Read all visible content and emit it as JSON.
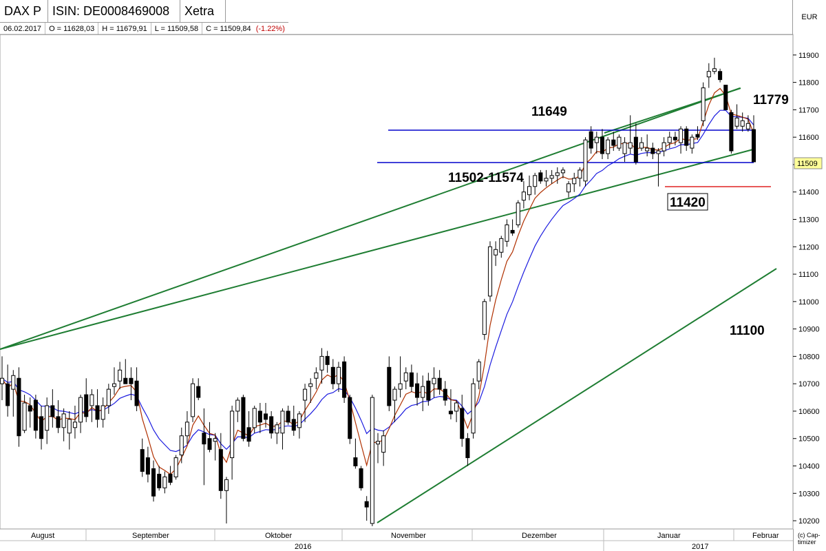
{
  "header": {
    "name": "DAX P",
    "isin": "ISIN: DE0008469008",
    "exchange": "Xetra",
    "currency": "EUR"
  },
  "ohlc": {
    "date": "06.02.2017",
    "open": "O = 11628,03",
    "high": "H = 11679,91",
    "low": "L = 11509,58",
    "close": "C = 11509,84",
    "change": "(-1.22%)"
  },
  "credit": "(c) Cap-timizer",
  "colors": {
    "up_candle": "#ffffff",
    "down_candle": "#000000",
    "ma_fast": "#b03000",
    "ma_slow": "#1a1adf",
    "trendline": "#1e7d32",
    "horizontal_level": "#0000cc",
    "support_line": "#e02020"
  },
  "chart_data": {
    "type": "candlestick",
    "y_ticks": [
      "11900",
      "11800",
      "11700",
      "11600",
      "11500",
      "11400",
      "11300",
      "11200",
      "11100",
      "11000",
      "10900",
      "10800",
      "10700",
      "10600",
      "10500",
      "10400",
      "10300",
      "10200"
    ],
    "ylim": [
      10175,
      11970
    ],
    "price_label": "11509",
    "months": [
      "August",
      "September",
      "Oktober",
      "November",
      "Dezember",
      "Januar",
      "Februar"
    ],
    "years": [
      "2016",
      "2017"
    ],
    "annotations": [
      "11649",
      "11779",
      "11502-11574",
      "11420",
      "11100"
    ],
    "candles": [
      {
        "o": 10700,
        "h": 10800,
        "l": 10640,
        "c": 10720
      },
      {
        "o": 10700,
        "h": 10770,
        "l": 10580,
        "c": 10620
      },
      {
        "o": 10680,
        "h": 10750,
        "l": 10580,
        "c": 10730
      },
      {
        "o": 10720,
        "h": 10760,
        "l": 10470,
        "c": 10510
      },
      {
        "o": 10530,
        "h": 10660,
        "l": 10520,
        "c": 10630
      },
      {
        "o": 10620,
        "h": 10650,
        "l": 10540,
        "c": 10600
      },
      {
        "o": 10640,
        "h": 10660,
        "l": 10500,
        "c": 10530
      },
      {
        "o": 10580,
        "h": 10620,
        "l": 10460,
        "c": 10500
      },
      {
        "o": 10530,
        "h": 10650,
        "l": 10480,
        "c": 10620
      },
      {
        "o": 10620,
        "h": 10680,
        "l": 10540,
        "c": 10580
      },
      {
        "o": 10580,
        "h": 10640,
        "l": 10520,
        "c": 10540
      },
      {
        "o": 10540,
        "h": 10610,
        "l": 10490,
        "c": 10590
      },
      {
        "o": 10520,
        "h": 10600,
        "l": 10460,
        "c": 10570
      },
      {
        "o": 10540,
        "h": 10620,
        "l": 10500,
        "c": 10560
      },
      {
        "o": 10560,
        "h": 10660,
        "l": 10520,
        "c": 10650
      },
      {
        "o": 10660,
        "h": 10720,
        "l": 10560,
        "c": 10580
      },
      {
        "o": 10620,
        "h": 10680,
        "l": 10560,
        "c": 10660
      },
      {
        "o": 10620,
        "h": 10680,
        "l": 10540,
        "c": 10570
      },
      {
        "o": 10570,
        "h": 10650,
        "l": 10540,
        "c": 10620
      },
      {
        "o": 10620,
        "h": 10700,
        "l": 10590,
        "c": 10680
      },
      {
        "o": 10690,
        "h": 10760,
        "l": 10660,
        "c": 10700
      },
      {
        "o": 10710,
        "h": 10780,
        "l": 10680,
        "c": 10750
      },
      {
        "o": 10720,
        "h": 10790,
        "l": 10700,
        "c": 10700
      },
      {
        "o": 10720,
        "h": 10760,
        "l": 10640,
        "c": 10700
      },
      {
        "o": 10710,
        "h": 10760,
        "l": 10600,
        "c": 10620
      },
      {
        "o": 10460,
        "h": 10500,
        "l": 10360,
        "c": 10380
      },
      {
        "o": 10430,
        "h": 10470,
        "l": 10340,
        "c": 10370
      },
      {
        "o": 10390,
        "h": 10420,
        "l": 10270,
        "c": 10290
      },
      {
        "o": 10370,
        "h": 10400,
        "l": 10310,
        "c": 10320
      },
      {
        "o": 10320,
        "h": 10380,
        "l": 10300,
        "c": 10360
      },
      {
        "o": 10370,
        "h": 10400,
        "l": 10330,
        "c": 10340
      },
      {
        "o": 10360,
        "h": 10440,
        "l": 10350,
        "c": 10430
      },
      {
        "o": 10440,
        "h": 10540,
        "l": 10410,
        "c": 10510
      },
      {
        "o": 10510,
        "h": 10600,
        "l": 10480,
        "c": 10560
      },
      {
        "o": 10580,
        "h": 10720,
        "l": 10560,
        "c": 10700
      },
      {
        "o": 10690,
        "h": 10720,
        "l": 10640,
        "c": 10650
      },
      {
        "o": 10520,
        "h": 10610,
        "l": 10330,
        "c": 10480
      },
      {
        "o": 10500,
        "h": 10560,
        "l": 10450,
        "c": 10460
      },
      {
        "o": 10490,
        "h": 10520,
        "l": 10420,
        "c": 10500
      },
      {
        "o": 10460,
        "h": 10520,
        "l": 10280,
        "c": 10310
      },
      {
        "o": 10310,
        "h": 10360,
        "l": 10190,
        "c": 10350
      },
      {
        "o": 10430,
        "h": 10620,
        "l": 10350,
        "c": 10600
      },
      {
        "o": 10600,
        "h": 10650,
        "l": 10560,
        "c": 10640
      },
      {
        "o": 10650,
        "h": 10660,
        "l": 10490,
        "c": 10500
      },
      {
        "o": 10540,
        "h": 10600,
        "l": 10470,
        "c": 10490
      },
      {
        "o": 10540,
        "h": 10620,
        "l": 10520,
        "c": 10610
      },
      {
        "o": 10600,
        "h": 10630,
        "l": 10520,
        "c": 10560
      },
      {
        "o": 10590,
        "h": 10630,
        "l": 10540,
        "c": 10570
      },
      {
        "o": 10580,
        "h": 10600,
        "l": 10500,
        "c": 10520
      },
      {
        "o": 10520,
        "h": 10560,
        "l": 10480,
        "c": 10550
      },
      {
        "o": 10520,
        "h": 10610,
        "l": 10460,
        "c": 10600
      },
      {
        "o": 10600,
        "h": 10620,
        "l": 10550,
        "c": 10560
      },
      {
        "o": 10570,
        "h": 10620,
        "l": 10510,
        "c": 10530
      },
      {
        "o": 10540,
        "h": 10600,
        "l": 10500,
        "c": 10590
      },
      {
        "o": 10640,
        "h": 10700,
        "l": 10560,
        "c": 10680
      },
      {
        "o": 10690,
        "h": 10720,
        "l": 10630,
        "c": 10700
      },
      {
        "o": 10720,
        "h": 10760,
        "l": 10680,
        "c": 10740
      },
      {
        "o": 10750,
        "h": 10830,
        "l": 10700,
        "c": 10800
      },
      {
        "o": 10800,
        "h": 10820,
        "l": 10740,
        "c": 10770
      },
      {
        "o": 10760,
        "h": 10790,
        "l": 10680,
        "c": 10700
      },
      {
        "o": 10700,
        "h": 10780,
        "l": 10670,
        "c": 10760
      },
      {
        "o": 10780,
        "h": 10800,
        "l": 10630,
        "c": 10650
      },
      {
        "o": 10650,
        "h": 10660,
        "l": 10480,
        "c": 10500
      },
      {
        "o": 10430,
        "h": 10500,
        "l": 10390,
        "c": 10400
      },
      {
        "o": 10390,
        "h": 10400,
        "l": 10310,
        "c": 10320
      },
      {
        "o": 10270,
        "h": 10290,
        "l": 10200,
        "c": 10250
      },
      {
        "o": 10190,
        "h": 10660,
        "l": 10180,
        "c": 10650
      },
      {
        "o": 10480,
        "h": 10520,
        "l": 10410,
        "c": 10490
      },
      {
        "o": 10450,
        "h": 10530,
        "l": 10400,
        "c": 10510
      },
      {
        "o": 10760,
        "h": 10800,
        "l": 10600,
        "c": 10620
      },
      {
        "o": 10640,
        "h": 10690,
        "l": 10560,
        "c": 10680
      },
      {
        "o": 10680,
        "h": 10800,
        "l": 10650,
        "c": 10700
      },
      {
        "o": 10710,
        "h": 10760,
        "l": 10680,
        "c": 10740
      },
      {
        "o": 10740,
        "h": 10770,
        "l": 10670,
        "c": 10690
      },
      {
        "o": 10700,
        "h": 10740,
        "l": 10620,
        "c": 10650
      },
      {
        "o": 10650,
        "h": 10730,
        "l": 10600,
        "c": 10690
      },
      {
        "o": 10710,
        "h": 10740,
        "l": 10620,
        "c": 10640
      },
      {
        "o": 10700,
        "h": 10760,
        "l": 10650,
        "c": 10720
      },
      {
        "o": 10720,
        "h": 10750,
        "l": 10660,
        "c": 10680
      },
      {
        "o": 10680,
        "h": 10710,
        "l": 10620,
        "c": 10640
      },
      {
        "o": 10600,
        "h": 10680,
        "l": 10570,
        "c": 10590
      },
      {
        "o": 10600,
        "h": 10640,
        "l": 10560,
        "c": 10630
      },
      {
        "o": 10610,
        "h": 10660,
        "l": 10470,
        "c": 10500
      },
      {
        "o": 10500,
        "h": 10520,
        "l": 10400,
        "c": 10430
      },
      {
        "o": 10520,
        "h": 10720,
        "l": 10500,
        "c": 10700
      },
      {
        "o": 10710,
        "h": 10790,
        "l": 10680,
        "c": 10780
      },
      {
        "o": 10880,
        "h": 11010,
        "l": 10860,
        "c": 11000
      },
      {
        "o": 11020,
        "h": 11220,
        "l": 11000,
        "c": 11200
      },
      {
        "o": 11170,
        "h": 11220,
        "l": 11130,
        "c": 11190
      },
      {
        "o": 11180,
        "h": 11240,
        "l": 11160,
        "c": 11230
      },
      {
        "o": 11220,
        "h": 11300,
        "l": 11200,
        "c": 11280
      },
      {
        "o": 11260,
        "h": 11300,
        "l": 11240,
        "c": 11250
      },
      {
        "o": 11280,
        "h": 11370,
        "l": 11270,
        "c": 11360
      },
      {
        "o": 11370,
        "h": 11440,
        "l": 11340,
        "c": 11400
      },
      {
        "o": 11390,
        "h": 11460,
        "l": 11370,
        "c": 11420
      },
      {
        "o": 11420,
        "h": 11470,
        "l": 11390,
        "c": 11460
      },
      {
        "o": 11470,
        "h": 11480,
        "l": 11430,
        "c": 11440
      },
      {
        "o": 11440,
        "h": 11480,
        "l": 11420,
        "c": 11450
      },
      {
        "o": 11450,
        "h": 11480,
        "l": 11430,
        "c": 11460
      },
      {
        "o": 11460,
        "h": 11490,
        "l": 11430,
        "c": 11470
      },
      {
        "o": 11470,
        "h": 11490,
        "l": 11450,
        "c": 11480
      },
      {
        "o": 11400,
        "h": 11440,
        "l": 11380,
        "c": 11430
      },
      {
        "o": 11430,
        "h": 11470,
        "l": 11400,
        "c": 11450
      },
      {
        "o": 11450,
        "h": 11490,
        "l": 11420,
        "c": 11480
      },
      {
        "o": 11440,
        "h": 11600,
        "l": 11420,
        "c": 11590
      },
      {
        "o": 11620,
        "h": 11640,
        "l": 11540,
        "c": 11560
      },
      {
        "o": 11580,
        "h": 11620,
        "l": 11540,
        "c": 11600
      },
      {
        "o": 11600,
        "h": 11630,
        "l": 11520,
        "c": 11540
      },
      {
        "o": 11540,
        "h": 11600,
        "l": 11520,
        "c": 11590
      },
      {
        "o": 11590,
        "h": 11620,
        "l": 11550,
        "c": 11570
      },
      {
        "o": 11560,
        "h": 11610,
        "l": 11550,
        "c": 11600
      },
      {
        "o": 11540,
        "h": 11600,
        "l": 11510,
        "c": 11580
      },
      {
        "o": 11560,
        "h": 11680,
        "l": 11540,
        "c": 11580
      },
      {
        "o": 11600,
        "h": 11650,
        "l": 11500,
        "c": 11510
      },
      {
        "o": 11560,
        "h": 11600,
        "l": 11550,
        "c": 11580
      },
      {
        "o": 11550,
        "h": 11610,
        "l": 11530,
        "c": 11560
      },
      {
        "o": 11560,
        "h": 11580,
        "l": 11520,
        "c": 11540
      },
      {
        "o": 11540,
        "h": 11560,
        "l": 11420,
        "c": 11550
      },
      {
        "o": 11550,
        "h": 11600,
        "l": 11530,
        "c": 11580
      },
      {
        "o": 11580,
        "h": 11620,
        "l": 11560,
        "c": 11600
      },
      {
        "o": 11600,
        "h": 11620,
        "l": 11570,
        "c": 11590
      },
      {
        "o": 11580,
        "h": 11640,
        "l": 11540,
        "c": 11630
      },
      {
        "o": 11630,
        "h": 11640,
        "l": 11550,
        "c": 11570
      },
      {
        "o": 11560,
        "h": 11610,
        "l": 11540,
        "c": 11600
      },
      {
        "o": 11610,
        "h": 11640,
        "l": 11590,
        "c": 11600
      },
      {
        "o": 11660,
        "h": 11800,
        "l": 11640,
        "c": 11780
      },
      {
        "o": 11820,
        "h": 11870,
        "l": 11780,
        "c": 11840
      },
      {
        "o": 11840,
        "h": 11890,
        "l": 11830,
        "c": 11850
      },
      {
        "o": 11840,
        "h": 11850,
        "l": 11800,
        "c": 11810
      },
      {
        "o": 11790,
        "h": 11790,
        "l": 11700,
        "c": 11700
      },
      {
        "o": 11690,
        "h": 11700,
        "l": 11540,
        "c": 11550
      },
      {
        "o": 11640,
        "h": 11720,
        "l": 11630,
        "c": 11670
      },
      {
        "o": 11640,
        "h": 11690,
        "l": 11620,
        "c": 11660
      },
      {
        "o": 11630,
        "h": 11680,
        "l": 11620,
        "c": 11650
      },
      {
        "o": 11628,
        "h": 11680,
        "l": 11509,
        "c": 11510
      }
    ]
  }
}
